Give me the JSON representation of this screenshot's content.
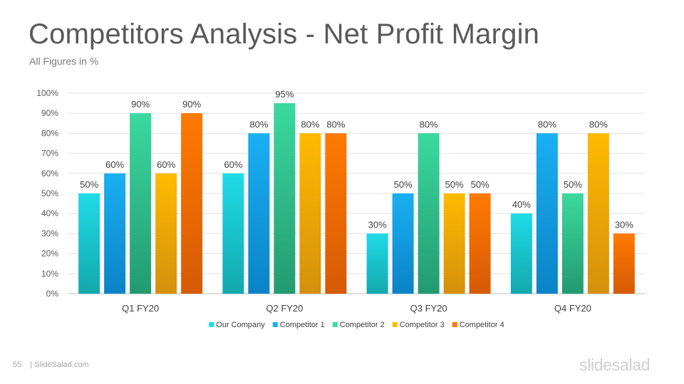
{
  "slide": {
    "title": "Competitors Analysis - Net Profit Margin",
    "subtitle": "All Figures in %",
    "page_number": "55",
    "footer_text": "| SlideSalad.com",
    "logo_text": "slidesalad"
  },
  "chart_data": {
    "type": "bar",
    "categories": [
      "Q1 FY20",
      "Q2 FY20",
      "Q3 FY20",
      "Q4 FY20"
    ],
    "series": [
      {
        "name": "Our Company",
        "values": [
          50,
          60,
          30,
          40
        ],
        "color_top": "#1fdbe8",
        "color_bottom": "#12a8ad"
      },
      {
        "name": "Competitor 1",
        "values": [
          60,
          80,
          50,
          80
        ],
        "color_top": "#1ab0f2",
        "color_bottom": "#0a83c6"
      },
      {
        "name": "Competitor 2",
        "values": [
          90,
          95,
          80,
          50
        ],
        "color_top": "#3bd9a0",
        "color_bottom": "#239a70"
      },
      {
        "name": "Competitor 3",
        "values": [
          60,
          80,
          50,
          80
        ],
        "color_top": "#ffbb00",
        "color_bottom": "#d4900c"
      },
      {
        "name": "Competitor 4",
        "values": [
          90,
          80,
          50,
          30
        ],
        "color_top": "#ff7a00",
        "color_bottom": "#d65a05"
      }
    ],
    "ylim": [
      0,
      100
    ],
    "yticks": [
      0,
      10,
      20,
      30,
      40,
      50,
      60,
      70,
      80,
      90,
      100
    ],
    "tick_suffix": "%",
    "data_label_suffix": "%",
    "grid": true,
    "legend_position": "bottom",
    "xlabel": "",
    "ylabel": ""
  }
}
